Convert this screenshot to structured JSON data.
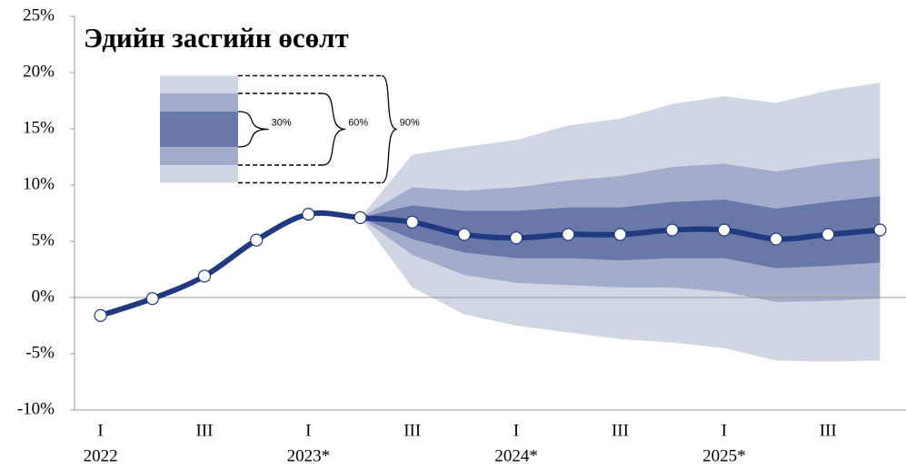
{
  "chart_data": {
    "type": "fan",
    "title": "Эдийн засгийн өсөлт",
    "categories": [
      "I",
      null,
      "III",
      null,
      "I",
      null,
      "III",
      null,
      "I",
      null,
      "III",
      null,
      "I",
      null,
      "III",
      null
    ],
    "years": [
      "2022",
      "2023*",
      "2024*",
      "2025*"
    ],
    "ylim": [
      -10,
      25
    ],
    "yticks": [
      {
        "value": -10,
        "label": "-10%"
      },
      {
        "value": -5,
        "label": "-5%"
      },
      {
        "value": 0,
        "label": "0%"
      },
      {
        "value": 5,
        "label": "5%"
      },
      {
        "value": 10,
        "label": "10%"
      },
      {
        "value": 15,
        "label": "15%"
      },
      {
        "value": 20,
        "label": "20%"
      },
      {
        "value": 25,
        "label": "25%"
      }
    ],
    "line": {
      "color": "#1f3a80",
      "values": [
        -1.6,
        -0.1,
        1.9,
        5.1,
        7.4,
        7.1,
        6.7,
        5.6,
        5.3,
        5.6,
        5.6,
        6.0,
        6.0,
        5.2,
        5.6,
        6.0
      ]
    },
    "bands": [
      {
        "name": "90%",
        "color": "#d1d6e4",
        "upper": [
          null,
          null,
          null,
          null,
          null,
          7.1,
          12.7,
          13.4,
          14.0,
          15.3,
          15.9,
          17.2,
          17.9,
          17.3,
          18.4,
          19.1
        ],
        "lower": [
          null,
          null,
          null,
          null,
          null,
          7.1,
          0.9,
          -1.5,
          -2.5,
          -3.1,
          -3.7,
          -4.0,
          -4.5,
          -5.6,
          -5.7,
          -5.6
        ]
      },
      {
        "name": "60%",
        "color": "#a3adcb",
        "upper": [
          null,
          null,
          null,
          null,
          null,
          7.1,
          9.8,
          9.5,
          9.8,
          10.4,
          10.8,
          11.6,
          11.9,
          11.2,
          11.9,
          12.4
        ],
        "lower": [
          null,
          null,
          null,
          null,
          null,
          7.1,
          3.8,
          2.0,
          1.3,
          1.1,
          0.9,
          0.9,
          0.5,
          -0.4,
          -0.3,
          -0.1
        ]
      },
      {
        "name": "30%",
        "color": "#6878a8",
        "upper": [
          null,
          null,
          null,
          null,
          null,
          7.1,
          8.2,
          7.7,
          7.7,
          8.0,
          8.0,
          8.5,
          8.7,
          7.9,
          8.5,
          9.0
        ],
        "lower": [
          null,
          null,
          null,
          null,
          null,
          7.1,
          5.2,
          4.0,
          3.5,
          3.5,
          3.3,
          3.5,
          3.5,
          2.6,
          2.8,
          3.1
        ]
      }
    ]
  }
}
